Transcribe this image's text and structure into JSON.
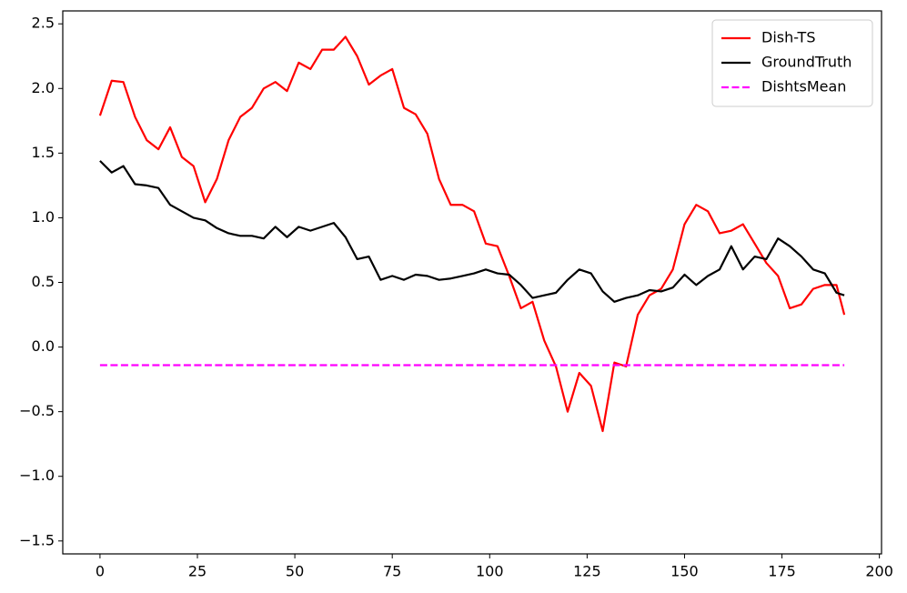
{
  "chart_data": {
    "type": "line",
    "x": [
      0,
      3,
      6,
      9,
      12,
      15,
      18,
      21,
      24,
      27,
      30,
      33,
      36,
      39,
      42,
      45,
      48,
      51,
      54,
      57,
      60,
      63,
      66,
      69,
      72,
      75,
      78,
      81,
      84,
      87,
      90,
      93,
      96,
      99,
      102,
      105,
      108,
      111,
      114,
      117,
      120,
      123,
      126,
      129,
      132,
      135,
      138,
      141,
      144,
      147,
      150,
      153,
      156,
      159,
      162,
      165,
      168,
      171,
      174,
      177,
      180,
      183,
      186,
      189,
      191
    ],
    "series": [
      {
        "name": "Dish-TS",
        "color": "#ff0000",
        "dash": false,
        "values": [
          1.79,
          2.06,
          2.05,
          1.78,
          1.6,
          1.53,
          1.7,
          1.47,
          1.4,
          1.12,
          1.3,
          1.6,
          1.78,
          1.85,
          2.0,
          2.05,
          1.98,
          2.2,
          2.15,
          2.3,
          2.3,
          2.4,
          2.25,
          2.03,
          2.1,
          2.15,
          1.85,
          1.8,
          1.65,
          1.3,
          1.1,
          1.1,
          1.05,
          0.8,
          0.78,
          0.55,
          0.3,
          0.35,
          0.05,
          -0.15,
          -0.5,
          -0.2,
          -0.3,
          -0.65,
          -0.12,
          -0.15,
          0.25,
          0.4,
          0.45,
          0.6,
          0.95,
          1.1,
          1.05,
          0.88,
          0.9,
          0.95,
          0.8,
          0.65,
          0.55,
          0.3,
          0.33,
          0.45,
          0.48,
          0.48,
          0.25
        ]
      },
      {
        "name": "GroundTruth",
        "color": "#000000",
        "dash": false,
        "values": [
          1.44,
          1.35,
          1.4,
          1.26,
          1.25,
          1.23,
          1.1,
          1.05,
          1.0,
          0.98,
          0.92,
          0.88,
          0.86,
          0.86,
          0.84,
          0.93,
          0.85,
          0.93,
          0.9,
          0.93,
          0.96,
          0.85,
          0.68,
          0.7,
          0.52,
          0.55,
          0.52,
          0.56,
          0.55,
          0.52,
          0.53,
          0.55,
          0.57,
          0.6,
          0.57,
          0.56,
          0.48,
          0.38,
          0.4,
          0.42,
          0.52,
          0.6,
          0.57,
          0.43,
          0.35,
          0.38,
          0.4,
          0.44,
          0.43,
          0.46,
          0.56,
          0.48,
          0.55,
          0.6,
          0.78,
          0.6,
          0.7,
          0.68,
          0.84,
          0.78,
          0.7,
          0.6,
          0.57,
          0.42,
          0.4
        ]
      },
      {
        "name": "DishtsMean",
        "color": "#ff00ff",
        "dash": true,
        "values": [
          -0.14,
          -0.14,
          -0.14,
          -0.14,
          -0.14,
          -0.14,
          -0.14,
          -0.14,
          -0.14,
          -0.14,
          -0.14,
          -0.14,
          -0.14,
          -0.14,
          -0.14,
          -0.14,
          -0.14,
          -0.14,
          -0.14,
          -0.14,
          -0.14,
          -0.14,
          -0.14,
          -0.14,
          -0.14,
          -0.14,
          -0.14,
          -0.14,
          -0.14,
          -0.14,
          -0.14,
          -0.14,
          -0.14,
          -0.14,
          -0.14,
          -0.14,
          -0.14,
          -0.14,
          -0.14,
          -0.14,
          -0.14,
          -0.14,
          -0.14,
          -0.14,
          -0.14,
          -0.14,
          -0.14,
          -0.14,
          -0.14,
          -0.14,
          -0.14,
          -0.14,
          -0.14,
          -0.14,
          -0.14,
          -0.14,
          -0.14,
          -0.14,
          -0.14,
          -0.14,
          -0.14,
          -0.14,
          -0.14,
          -0.14,
          -0.14
        ]
      }
    ],
    "xlim": [
      -9.55,
      200.55
    ],
    "xticks": [
      0,
      25,
      50,
      75,
      100,
      125,
      150,
      175,
      200
    ],
    "ylim": [
      -1.6,
      2.6
    ],
    "yticks": [
      {
        "value": -1.5,
        "label": "−1.5"
      },
      {
        "value": -1,
        "label": "−1.0"
      },
      {
        "value": -0.5,
        "label": "−0.5"
      },
      {
        "value": 0,
        "label": "0.0"
      },
      0.5,
      {
        "value": 1,
        "label": "1.0"
      },
      1.5,
      {
        "value": 2,
        "label": "2.0"
      },
      2.5
    ],
    "legend": "upper right"
  }
}
